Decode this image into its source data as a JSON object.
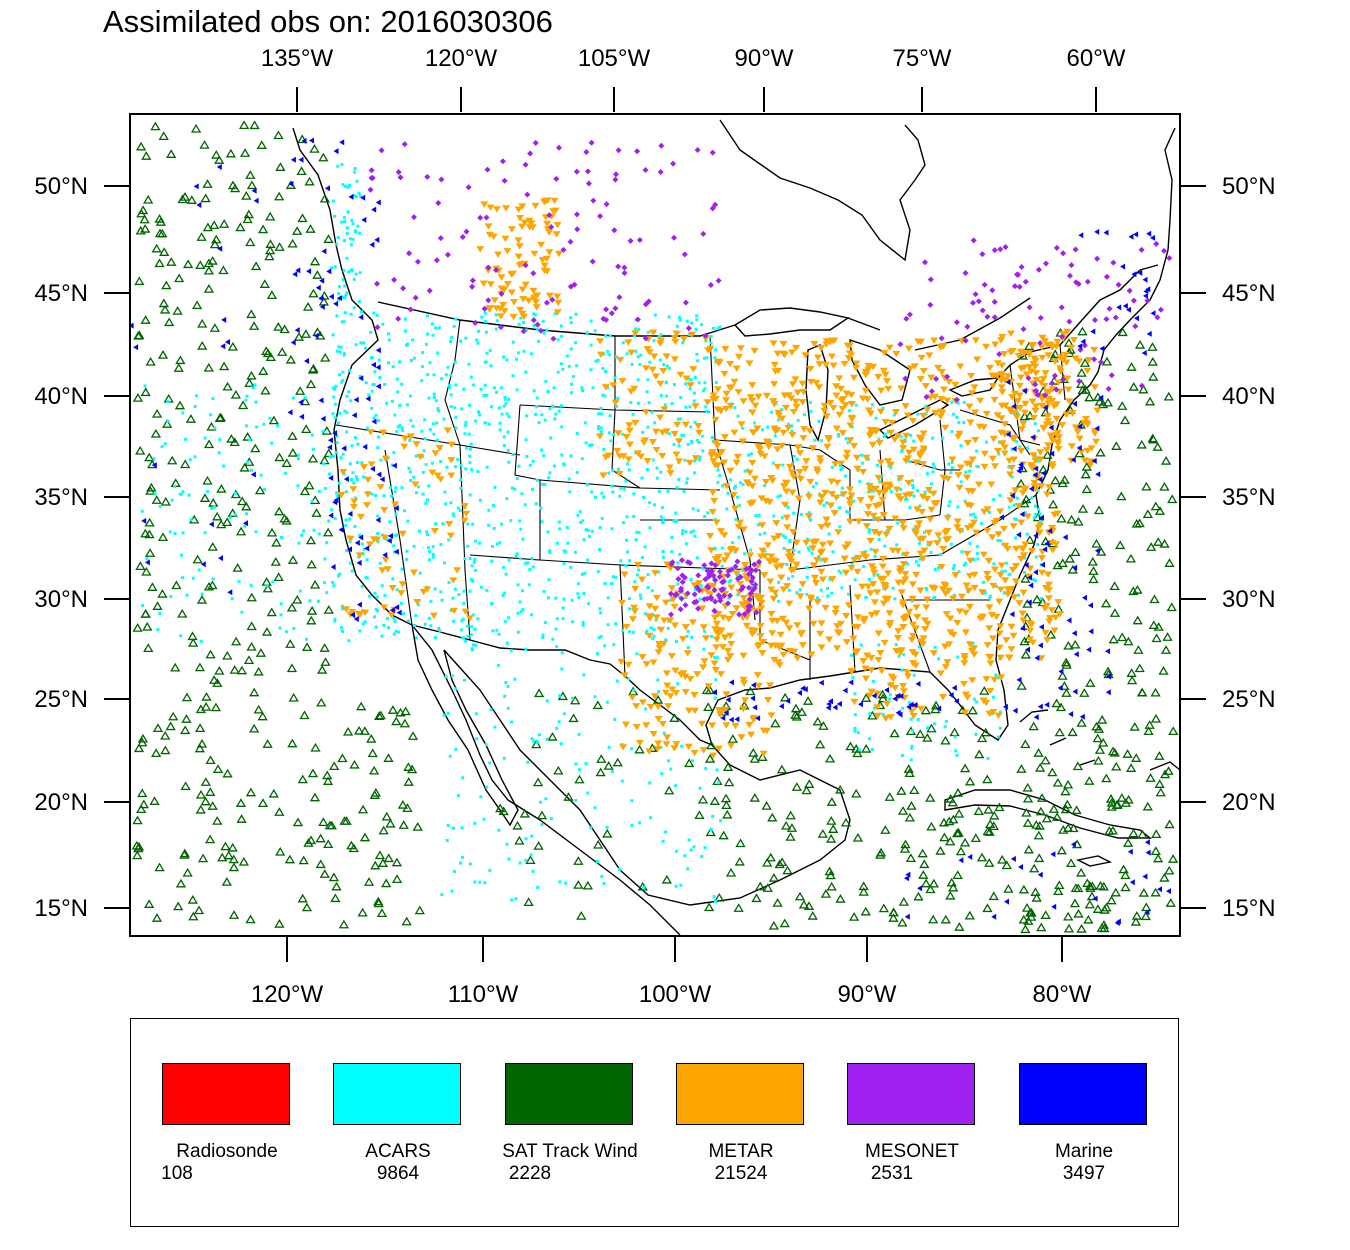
{
  "title": "Assimilated obs on: 2016030306",
  "map": {
    "top_lon_ticks": [
      "135°W",
      "120°W",
      "105°W",
      "90°W",
      "75°W",
      "60°W"
    ],
    "bottom_lon_ticks": [
      "120°W",
      "110°W",
      "100°W",
      "90°W",
      "80°W"
    ],
    "lat_ticks": [
      "50°N",
      "45°N",
      "40°N",
      "35°N",
      "30°N",
      "25°N",
      "20°N",
      "15°N"
    ]
  },
  "legend": {
    "items": [
      {
        "label": "Radiosonde",
        "count": "108",
        "color": "#ff0000"
      },
      {
        "label": "ACARS",
        "count": "9864",
        "color": "#00ffff"
      },
      {
        "label": "SAT Track Wind",
        "count": "2228",
        "color": "#006400"
      },
      {
        "label": "METAR",
        "count": "21524",
        "color": "#ffa500"
      },
      {
        "label": "MESONET",
        "count": "2531",
        "color": "#a020f0"
      },
      {
        "label": "Marine",
        "count": "3497",
        "color": "#0000ff"
      }
    ]
  }
}
